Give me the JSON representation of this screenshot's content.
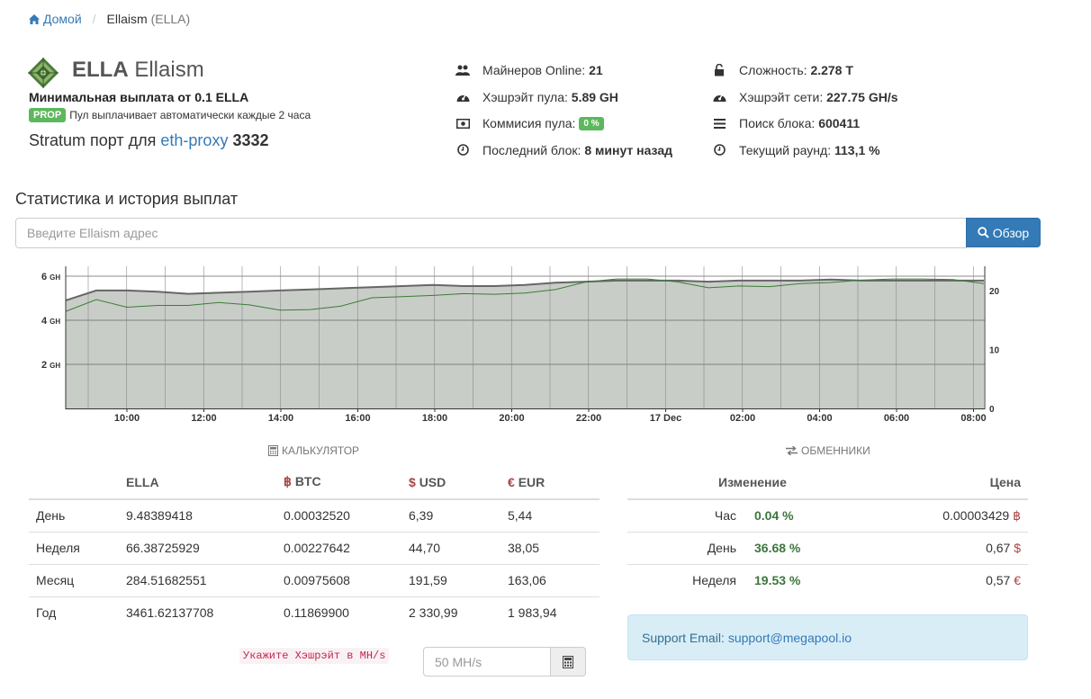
{
  "breadcrumb": {
    "home": "Домой",
    "current": "Ellaism",
    "current_suffix": "(ELLA)"
  },
  "coin": {
    "ticker": "ELLA",
    "name": "Ellaism",
    "min_payout": "Минимальная выплата от 0.1 ELLA",
    "scheme_badge": "PROP",
    "scheme_text": "Пул выплачивает автоматически каждые 2 часа",
    "stratum_prefix": "Stratum порт для",
    "stratum_link": "eth-proxy",
    "stratum_port": "3332"
  },
  "stats_left": [
    {
      "icon": "users-icon",
      "label": "Майнеров Online:",
      "value": "21"
    },
    {
      "icon": "dashboard-icon",
      "label": "Хэшрэйт пула:",
      "value": "5.89 GH"
    },
    {
      "icon": "money-icon",
      "label": "Коммисия пула:",
      "value": "0 %"
    },
    {
      "icon": "clock-icon",
      "label": "Последний блок:",
      "value": "8 минут назад"
    }
  ],
  "stats_right": [
    {
      "icon": "unlock-icon",
      "label": "Сложность:",
      "value": "2.278 T"
    },
    {
      "icon": "dashboard-icon",
      "label": "Хэшрэйт сети:",
      "value": "227.75 GH/s"
    },
    {
      "icon": "bars-icon",
      "label": "Поиск блока:",
      "value": "600411"
    },
    {
      "icon": "clock-icon",
      "label": "Текущий раунд:",
      "value": "113,1 %"
    }
  ],
  "search": {
    "title": "Статистика и история выплат",
    "placeholder": "Введите Ellaism адрес",
    "button": "Обзор"
  },
  "chart_data": {
    "type": "area",
    "x_ticks": [
      "10:00",
      "12:00",
      "14:00",
      "16:00",
      "18:00",
      "20:00",
      "22:00",
      "17 Dec",
      "02:00",
      "04:00",
      "06:00",
      "08:00"
    ],
    "y_left_ticks": [
      "6",
      "4",
      "2"
    ],
    "y_left_unit": "GH",
    "y_right_ticks": [
      "20",
      "10",
      "0"
    ],
    "ylim_left": [
      0,
      6
    ],
    "ylim_right": [
      0,
      24
    ],
    "colors": {
      "hashrate": "#666666",
      "miners": "#3a7d35",
      "fill": "#c9cdc8"
    },
    "series": [
      {
        "values": [
          4.9,
          5.35,
          5.35,
          5.3,
          5.2,
          5.25,
          5.3,
          5.35,
          5.4,
          5.45,
          5.5,
          5.55,
          5.6,
          5.55,
          5.55,
          5.6,
          5.7,
          5.75,
          5.8,
          5.8,
          5.8,
          5.75,
          5.8,
          5.8,
          5.8,
          5.85,
          5.8,
          5.8,
          5.8,
          5.8,
          5.8
        ]
      },
      {
        "values": [
          16.5,
          18.5,
          17.2,
          17.5,
          17.5,
          18.0,
          17.6,
          16.7,
          16.8,
          17.4,
          18.8,
          19.0,
          19.2,
          19.5,
          19.4,
          19.6,
          20.2,
          21.5,
          22.0,
          22.0,
          21.5,
          20.5,
          20.8,
          20.7,
          21.2,
          21.4,
          21.8,
          22.0,
          22.0,
          21.9,
          21.2
        ]
      }
    ]
  },
  "calculator": {
    "title": "Калькулятор",
    "headers": [
      "ELLA",
      "BTC",
      "USD",
      "EUR"
    ],
    "currency_symbols": [
      "฿",
      "$",
      "€"
    ],
    "rows": [
      {
        "period": "День",
        "ella": "9.48389418",
        "btc": "0.00032520",
        "usd": "6,39",
        "eur": "5,44"
      },
      {
        "period": "Неделя",
        "ella": "66.38725929",
        "btc": "0.00227642",
        "usd": "44,70",
        "eur": "38,05"
      },
      {
        "period": "Месяц",
        "ella": "284.51682551",
        "btc": "0.00975608",
        "usd": "191,59",
        "eur": "163,06"
      },
      {
        "period": "Год",
        "ella": "3461.62137708",
        "btc": "0.11869900",
        "usd": "2 330,99",
        "eur": "1 983,94"
      }
    ],
    "hint": "Укажите Хэшрэйт в MH/s",
    "hash_placeholder": "50 MH/s"
  },
  "exchangers": {
    "title": "Обменники",
    "headers": [
      "Изменение",
      "Цена"
    ],
    "rows": [
      {
        "period": "Час",
        "change": "0.04 %",
        "price": "0.00003429",
        "symbol": "฿"
      },
      {
        "period": "День",
        "change": "36.68 %",
        "price": "0,67",
        "symbol": "$"
      },
      {
        "period": "Неделя",
        "change": "19.53 %",
        "price": "0,57",
        "symbol": "€"
      }
    ]
  },
  "support": {
    "label": "Support Email:",
    "email": "support@megapool.io"
  }
}
